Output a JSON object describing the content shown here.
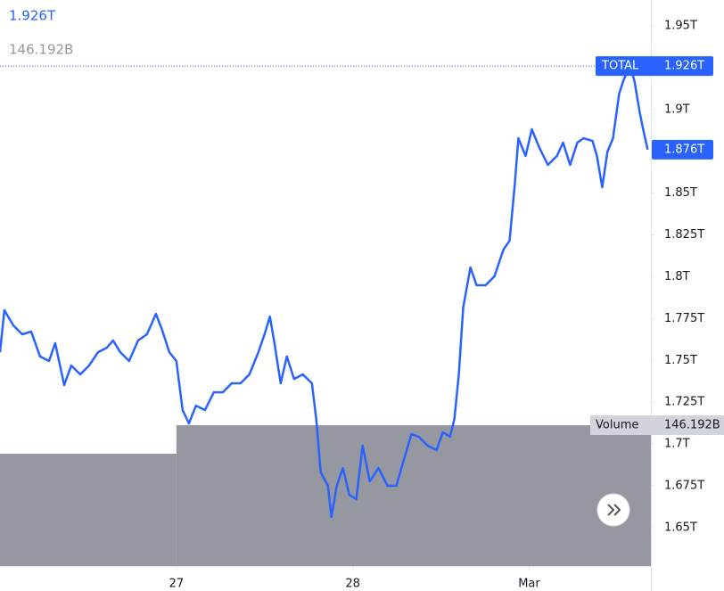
{
  "chart_data": {
    "type": "line",
    "x": [
      26.0,
      26.025,
      26.076,
      26.126,
      26.177,
      26.227,
      26.278,
      26.313,
      26.364,
      26.404,
      26.455,
      26.505,
      26.556,
      26.606,
      26.641,
      26.682,
      26.732,
      26.783,
      26.833,
      26.884,
      26.919,
      26.96,
      27.0,
      27.035,
      27.071,
      27.111,
      27.162,
      27.212,
      27.263,
      27.313,
      27.364,
      27.414,
      27.465,
      27.5,
      27.53,
      27.556,
      27.591,
      27.626,
      27.667,
      27.717,
      27.768,
      27.793,
      27.818,
      27.859,
      27.879,
      27.909,
      27.944,
      27.98,
      28.02,
      28.056,
      28.096,
      28.146,
      28.197,
      28.247,
      28.298,
      28.333,
      28.374,
      28.424,
      28.475,
      28.51,
      28.551,
      28.576,
      28.601,
      28.626,
      28.667,
      28.702,
      28.753,
      28.803,
      28.854,
      28.889,
      28.919,
      28.939,
      28.98,
      29.015,
      29.056,
      29.106,
      29.157,
      29.192,
      29.232,
      29.273,
      29.308,
      29.359,
      29.384,
      29.414,
      29.444,
      29.475,
      29.51,
      29.535,
      29.571,
      29.596,
      29.626,
      29.646,
      29.672
    ],
    "series": [
      {
        "name": "TOTAL",
        "color": "#2962ff",
        "values": [
          1.7549,
          1.78,
          1.7709,
          1.7656,
          1.7672,
          1.7523,
          1.7496,
          1.7603,
          1.7352,
          1.7469,
          1.7416,
          1.7469,
          1.7549,
          1.7576,
          1.7619,
          1.7549,
          1.7496,
          1.7619,
          1.7656,
          1.7778,
          1.7682,
          1.7549,
          1.7496,
          1.7203,
          1.7123,
          1.7229,
          1.7203,
          1.7309,
          1.7309,
          1.7363,
          1.7363,
          1.7416,
          1.7549,
          1.7656,
          1.7762,
          1.7603,
          1.7363,
          1.7523,
          1.7389,
          1.7416,
          1.7363,
          1.7149,
          1.683,
          1.675,
          1.6563,
          1.675,
          1.6856,
          1.6696,
          1.667,
          1.699,
          1.6776,
          1.6856,
          1.675,
          1.675,
          1.6936,
          1.7059,
          1.7043,
          1.699,
          1.6963,
          1.707,
          1.7043,
          1.7149,
          1.7416,
          1.7816,
          1.8056,
          1.7949,
          1.7949,
          1.8002,
          1.8162,
          1.8215,
          1.8562,
          1.8828,
          1.8722,
          1.8882,
          1.8775,
          1.8669,
          1.8722,
          1.8802,
          1.8669,
          1.8802,
          1.8828,
          1.8812,
          1.8722,
          1.8535,
          1.8748,
          1.8828,
          1.9095,
          1.9175,
          1.926,
          1.9175,
          1.8988,
          1.8882,
          1.876
        ]
      }
    ],
    "high": {
      "value": 1.926,
      "value_label": "1.926T"
    },
    "last": {
      "value": 1.876,
      "value_label": "1.876T"
    },
    "volume": {
      "name": "Volume",
      "color": "#9598a1",
      "bins": [
        26,
        27,
        29.69
      ],
      "values": [
        116.6,
        146.192
      ],
      "value_label": "146.192B",
      "ylim": [
        0,
        587.5
      ]
    },
    "xlim": [
      26,
      29.69
    ],
    "xticks": [
      {
        "value": 27,
        "label": "27"
      },
      {
        "value": 28,
        "label": "28"
      },
      {
        "value": 29,
        "label": "Mar"
      }
    ],
    "ylim": [
      1.627,
      1.9655
    ],
    "yticks": [
      {
        "value": 1.95,
        "label": "1.95T"
      },
      {
        "value": 1.9,
        "label": "1.9T"
      },
      {
        "value": 1.85,
        "label": "1.85T"
      },
      {
        "value": 1.825,
        "label": "1.825T"
      },
      {
        "value": 1.8,
        "label": "1.8T"
      },
      {
        "value": 1.775,
        "label": "1.775T"
      },
      {
        "value": 1.75,
        "label": "1.75T"
      },
      {
        "value": 1.725,
        "label": "1.725T"
      },
      {
        "value": 1.7,
        "label": "1.7T"
      },
      {
        "value": 1.675,
        "label": "1.675T"
      },
      {
        "value": 1.65,
        "label": "1.65T"
      }
    ],
    "grid": false
  }
}
